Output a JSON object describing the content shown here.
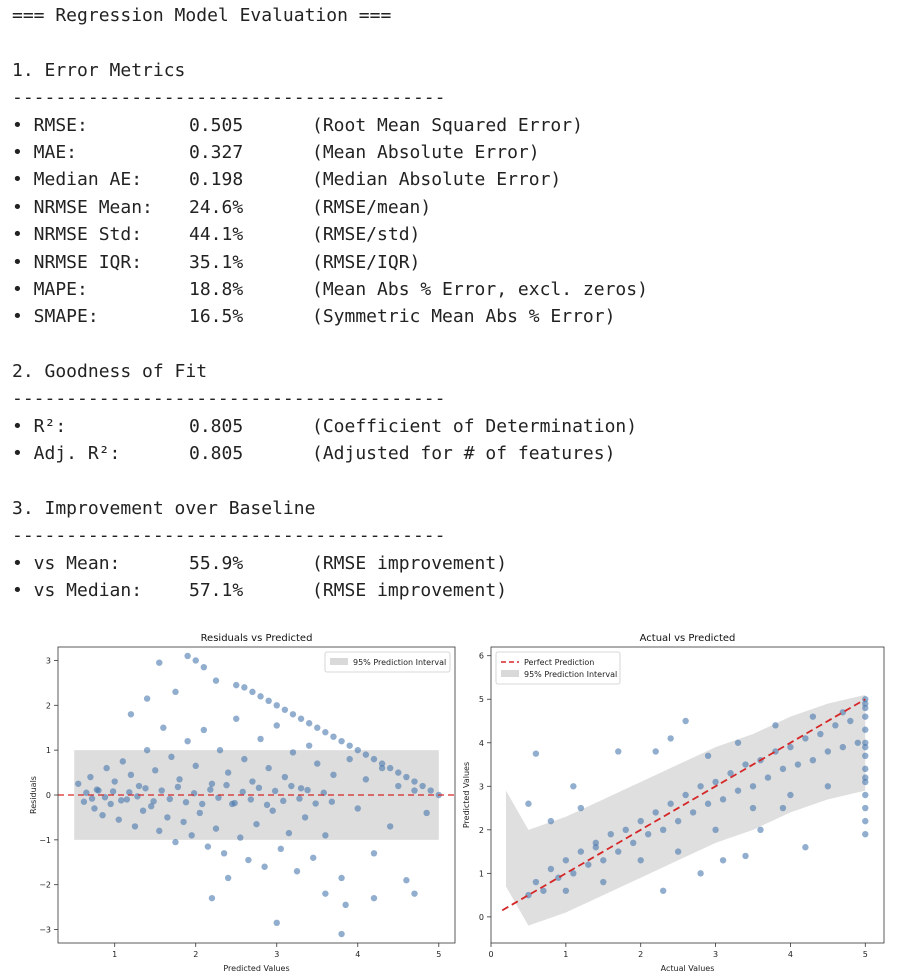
{
  "report": {
    "title": "=== Regression Model Evaluation ===",
    "separator": "----------------------------------------",
    "sections": [
      {
        "heading": "1. Error Metrics",
        "rows": [
          {
            "label": "• RMSE:",
            "value": "0.505",
            "note": "(Root Mean Squared Error)"
          },
          {
            "label": "• MAE:",
            "value": "0.327",
            "note": "(Mean Absolute Error)"
          },
          {
            "label": "• Median AE:",
            "value": "0.198",
            "note": "(Median Absolute Error)"
          },
          {
            "label": "• NRMSE Mean:",
            "value": "24.6%",
            "note": "(RMSE/mean)"
          },
          {
            "label": "• NRMSE Std:",
            "value": "44.1%",
            "note": "(RMSE/std)"
          },
          {
            "label": "• NRMSE IQR:",
            "value": "35.1%",
            "note": "(RMSE/IQR)"
          },
          {
            "label": "• MAPE:",
            "value": "18.8%",
            "note": "(Mean Abs % Error, excl. zeros)"
          },
          {
            "label": "• SMAPE:",
            "value": "16.5%",
            "note": "(Symmetric Mean Abs % Error)"
          }
        ]
      },
      {
        "heading": "2. Goodness of Fit",
        "rows": [
          {
            "label": "• R²:",
            "value": "0.805",
            "note": "(Coefficient of Determination)"
          },
          {
            "label": "• Adj. R²:",
            "value": "0.805",
            "note": "(Adjusted for # of features)"
          }
        ]
      },
      {
        "heading": "3. Improvement over Baseline",
        "rows": [
          {
            "label": "• vs Mean:",
            "value": "55.9%",
            "note": "(RMSE improvement)"
          },
          {
            "label": "• vs Median:",
            "value": "57.1%",
            "note": "(RMSE improvement)"
          }
        ]
      }
    ]
  },
  "colors": {
    "points": "#4a78ad",
    "interval": "#d9d9d9",
    "reference_line": "#d62728",
    "text": "#222222"
  },
  "chart_data": [
    {
      "type": "scatter",
      "title": "Residuals vs Predicted",
      "xlabel": "Predicted Values",
      "ylabel": "Residuals",
      "xlim": [
        0.3,
        5.2
      ],
      "ylim": [
        -3.3,
        3.3
      ],
      "xticks": [
        1,
        2,
        3,
        4,
        5
      ],
      "yticks": [
        -3,
        -2,
        -1,
        0,
        1,
        2,
        3
      ],
      "legend": [
        {
          "label": "95% Prediction Interval",
          "kind": "band"
        }
      ],
      "legend_position": "upper right",
      "grid": false,
      "reference_line": {
        "y": 0,
        "style": "dashed"
      },
      "band": {
        "x": [
          0.5,
          5.0
        ],
        "y": [
          -1.0,
          1.0
        ]
      },
      "points": [
        [
          0.55,
          0.25
        ],
        [
          0.62,
          -0.15
        ],
        [
          0.7,
          0.4
        ],
        [
          0.75,
          -0.3
        ],
        [
          0.8,
          0.1
        ],
        [
          0.85,
          -0.45
        ],
        [
          0.9,
          0.6
        ],
        [
          0.95,
          -0.2
        ],
        [
          1.0,
          0.3
        ],
        [
          1.05,
          -0.55
        ],
        [
          1.1,
          0.75
        ],
        [
          1.15,
          -0.1
        ],
        [
          1.2,
          0.45
        ],
        [
          1.25,
          -0.7
        ],
        [
          1.3,
          0.2
        ],
        [
          1.35,
          -0.35
        ],
        [
          1.4,
          1.0
        ],
        [
          1.45,
          -0.25
        ],
        [
          1.5,
          0.55
        ],
        [
          1.55,
          -0.8
        ],
        [
          1.6,
          1.5
        ],
        [
          1.65,
          -0.5
        ],
        [
          1.7,
          0.85
        ],
        [
          1.75,
          -1.05
        ],
        [
          1.8,
          0.35
        ],
        [
          1.85,
          -0.6
        ],
        [
          1.9,
          1.2
        ],
        [
          1.95,
          -0.9
        ],
        [
          2.0,
          0.65
        ],
        [
          2.05,
          -0.4
        ],
        [
          2.1,
          1.45
        ],
        [
          2.15,
          -1.15
        ],
        [
          2.2,
          0.25
        ],
        [
          2.25,
          -0.75
        ],
        [
          2.3,
          1.0
        ],
        [
          2.35,
          -1.3
        ],
        [
          2.4,
          0.5
        ],
        [
          2.45,
          -0.2
        ],
        [
          2.5,
          1.7
        ],
        [
          2.55,
          -0.95
        ],
        [
          2.6,
          0.8
        ],
        [
          2.65,
          -1.45
        ],
        [
          2.7,
          0.3
        ],
        [
          2.75,
          -0.65
        ],
        [
          2.8,
          1.25
        ],
        [
          2.85,
          -1.6
        ],
        [
          2.9,
          0.6
        ],
        [
          2.95,
          -0.35
        ],
        [
          3.0,
          1.55
        ],
        [
          3.05,
          -1.2
        ],
        [
          3.1,
          0.4
        ],
        [
          3.15,
          -0.85
        ],
        [
          3.2,
          0.95
        ],
        [
          3.25,
          -1.7
        ],
        [
          3.3,
          0.15
        ],
        [
          3.35,
          -0.5
        ],
        [
          3.4,
          1.1
        ],
        [
          3.45,
          -1.4
        ],
        [
          3.5,
          0.7
        ],
        [
          3.6,
          -0.9
        ],
        [
          3.7,
          0.45
        ],
        [
          3.8,
          -1.85
        ],
        [
          3.9,
          0.8
        ],
        [
          4.0,
          -0.3
        ],
        [
          4.1,
          0.35
        ],
        [
          4.2,
          -1.3
        ],
        [
          4.3,
          0.6
        ],
        [
          4.4,
          -0.7
        ],
        [
          4.5,
          0.2
        ],
        [
          4.6,
          -1.9
        ],
        [
          4.7,
          0.1
        ],
        [
          4.85,
          -0.4
        ],
        [
          0.65,
          0.05
        ],
        [
          0.72,
          -0.08
        ],
        [
          0.78,
          0.12
        ],
        [
          0.88,
          -0.05
        ],
        [
          0.98,
          0.08
        ],
        [
          1.08,
          -0.12
        ],
        [
          1.18,
          0.06
        ],
        [
          1.28,
          -0.03
        ],
        [
          1.38,
          0.15
        ],
        [
          1.48,
          -0.14
        ],
        [
          1.58,
          0.1
        ],
        [
          1.68,
          -0.09
        ],
        [
          1.78,
          0.18
        ],
        [
          1.88,
          -0.16
        ],
        [
          1.98,
          0.04
        ],
        [
          2.08,
          -0.2
        ],
        [
          2.18,
          0.12
        ],
        [
          2.28,
          -0.06
        ],
        [
          2.38,
          0.22
        ],
        [
          2.48,
          -0.18
        ],
        [
          2.58,
          0.07
        ],
        [
          2.68,
          -0.1
        ],
        [
          2.78,
          0.16
        ],
        [
          2.88,
          -0.22
        ],
        [
          2.98,
          0.09
        ],
        [
          3.08,
          -0.13
        ],
        [
          3.18,
          0.2
        ],
        [
          3.28,
          -0.08
        ],
        [
          3.38,
          0.11
        ],
        [
          3.48,
          -0.19
        ],
        [
          3.58,
          0.05
        ],
        [
          3.68,
          -0.15
        ],
        [
          1.55,
          2.95
        ],
        [
          1.9,
          3.1
        ],
        [
          2.0,
          3.0
        ],
        [
          2.1,
          2.85
        ],
        [
          1.4,
          2.15
        ],
        [
          1.2,
          1.8
        ],
        [
          2.25,
          2.55
        ],
        [
          1.75,
          2.3
        ],
        [
          2.2,
          -2.3
        ],
        [
          3.0,
          -2.85
        ],
        [
          3.8,
          -3.1
        ],
        [
          3.85,
          -2.45
        ],
        [
          3.6,
          -2.2
        ],
        [
          4.2,
          -2.3
        ],
        [
          4.7,
          -2.2
        ],
        [
          2.4,
          -1.85
        ],
        [
          2.5,
          2.45
        ],
        [
          2.6,
          2.4
        ],
        [
          2.7,
          2.3
        ],
        [
          2.8,
          2.2
        ],
        [
          2.9,
          2.1
        ],
        [
          3.0,
          2.0
        ],
        [
          3.1,
          1.9
        ],
        [
          3.2,
          1.8
        ],
        [
          3.3,
          1.7
        ],
        [
          3.4,
          1.6
        ],
        [
          3.5,
          1.5
        ],
        [
          3.6,
          1.4
        ],
        [
          3.7,
          1.3
        ],
        [
          3.8,
          1.2
        ],
        [
          3.9,
          1.1
        ],
        [
          4.0,
          1.0
        ],
        [
          4.1,
          0.9
        ],
        [
          4.2,
          0.8
        ],
        [
          4.3,
          0.7
        ],
        [
          4.4,
          0.6
        ],
        [
          4.5,
          0.5
        ],
        [
          4.6,
          0.4
        ],
        [
          4.7,
          0.3
        ],
        [
          4.8,
          0.2
        ],
        [
          4.9,
          0.1
        ],
        [
          5.0,
          0.0
        ]
      ]
    },
    {
      "type": "scatter",
      "title": "Actual vs Predicted",
      "xlabel": "Actual Values",
      "ylabel": "Predicted Values",
      "xlim": [
        0.0,
        5.25
      ],
      "ylim": [
        -0.6,
        6.2
      ],
      "xticks": [
        0,
        1,
        2,
        3,
        4,
        5
      ],
      "yticks": [
        0,
        1,
        2,
        3,
        4,
        5,
        6
      ],
      "legend": [
        {
          "label": "Perfect Prediction",
          "kind": "dashed-line"
        },
        {
          "label": "95% Prediction Interval",
          "kind": "band"
        }
      ],
      "legend_position": "upper left",
      "grid": false,
      "reference_line": {
        "from": [
          0.15,
          0.15
        ],
        "to": [
          5.0,
          5.0
        ],
        "style": "dashed"
      },
      "band_center": [
        [
          0.2,
          1.8
        ],
        [
          0.5,
          0.9
        ],
        [
          1.0,
          1.2
        ],
        [
          1.5,
          1.6
        ],
        [
          2.0,
          2.0
        ],
        [
          2.5,
          2.4
        ],
        [
          3.0,
          2.8
        ],
        [
          3.5,
          3.1
        ],
        [
          4.0,
          3.5
        ],
        [
          4.5,
          3.8
        ],
        [
          5.0,
          4.0
        ]
      ],
      "band_halfwidth": 1.1,
      "points": [
        [
          0.5,
          0.5
        ],
        [
          0.6,
          0.8
        ],
        [
          0.7,
          0.6
        ],
        [
          0.8,
          1.1
        ],
        [
          0.9,
          0.9
        ],
        [
          1.0,
          1.3
        ],
        [
          1.1,
          1.0
        ],
        [
          1.2,
          1.5
        ],
        [
          1.3,
          1.2
        ],
        [
          1.4,
          1.6
        ],
        [
          1.5,
          1.3
        ],
        [
          1.6,
          1.9
        ],
        [
          1.7,
          1.5
        ],
        [
          1.8,
          2.0
        ],
        [
          1.9,
          1.7
        ],
        [
          2.0,
          2.2
        ],
        [
          2.1,
          1.9
        ],
        [
          2.2,
          2.4
        ],
        [
          2.3,
          2.0
        ],
        [
          2.4,
          2.6
        ],
        [
          2.5,
          2.2
        ],
        [
          2.6,
          2.8
        ],
        [
          2.7,
          2.4
        ],
        [
          2.8,
          3.0
        ],
        [
          2.9,
          2.6
        ],
        [
          3.0,
          3.1
        ],
        [
          3.1,
          2.7
        ],
        [
          3.2,
          3.3
        ],
        [
          3.3,
          2.9
        ],
        [
          3.4,
          3.5
        ],
        [
          3.5,
          3.0
        ],
        [
          3.6,
          3.6
        ],
        [
          3.7,
          3.2
        ],
        [
          3.8,
          3.8
        ],
        [
          3.9,
          3.4
        ],
        [
          4.0,
          3.9
        ],
        [
          4.1,
          3.5
        ],
        [
          4.2,
          4.1
        ],
        [
          4.3,
          3.6
        ],
        [
          4.4,
          4.2
        ],
        [
          4.5,
          3.8
        ],
        [
          4.6,
          4.4
        ],
        [
          4.7,
          3.9
        ],
        [
          4.8,
          4.5
        ],
        [
          4.9,
          4.0
        ],
        [
          0.6,
          3.75
        ],
        [
          0.8,
          2.2
        ],
        [
          0.5,
          2.6
        ],
        [
          1.1,
          3.0
        ],
        [
          1.4,
          1.7
        ],
        [
          1.7,
          3.8
        ],
        [
          2.4,
          4.1
        ],
        [
          2.2,
          3.8
        ],
        [
          2.6,
          4.5
        ],
        [
          2.3,
          0.6
        ],
        [
          3.1,
          1.3
        ],
        [
          3.4,
          1.4
        ],
        [
          2.8,
          1.0
        ],
        [
          3.6,
          2.0
        ],
        [
          4.2,
          1.6
        ],
        [
          3.9,
          2.5
        ],
        [
          1.2,
          2.5
        ],
        [
          1.0,
          0.6
        ],
        [
          1.5,
          0.8
        ],
        [
          2.0,
          1.3
        ],
        [
          2.5,
          1.5
        ],
        [
          3.0,
          2.0
        ],
        [
          3.5,
          2.5
        ],
        [
          4.0,
          2.8
        ],
        [
          4.5,
          3.0
        ],
        [
          4.7,
          4.7
        ],
        [
          4.3,
          4.6
        ],
        [
          3.8,
          4.4
        ],
        [
          3.3,
          4.0
        ],
        [
          2.9,
          3.7
        ],
        [
          5.0,
          1.9
        ],
        [
          5.0,
          2.2
        ],
        [
          5.0,
          2.5
        ],
        [
          5.0,
          2.8
        ],
        [
          5.0,
          3.1
        ],
        [
          5.0,
          3.4
        ],
        [
          5.0,
          3.7
        ],
        [
          5.0,
          4.0
        ],
        [
          5.0,
          4.3
        ],
        [
          5.0,
          4.6
        ],
        [
          5.0,
          4.9
        ],
        [
          5.0,
          5.0
        ],
        [
          5.0,
          4.8
        ],
        [
          5.0,
          3.9
        ],
        [
          5.0,
          3.2
        ]
      ]
    }
  ]
}
